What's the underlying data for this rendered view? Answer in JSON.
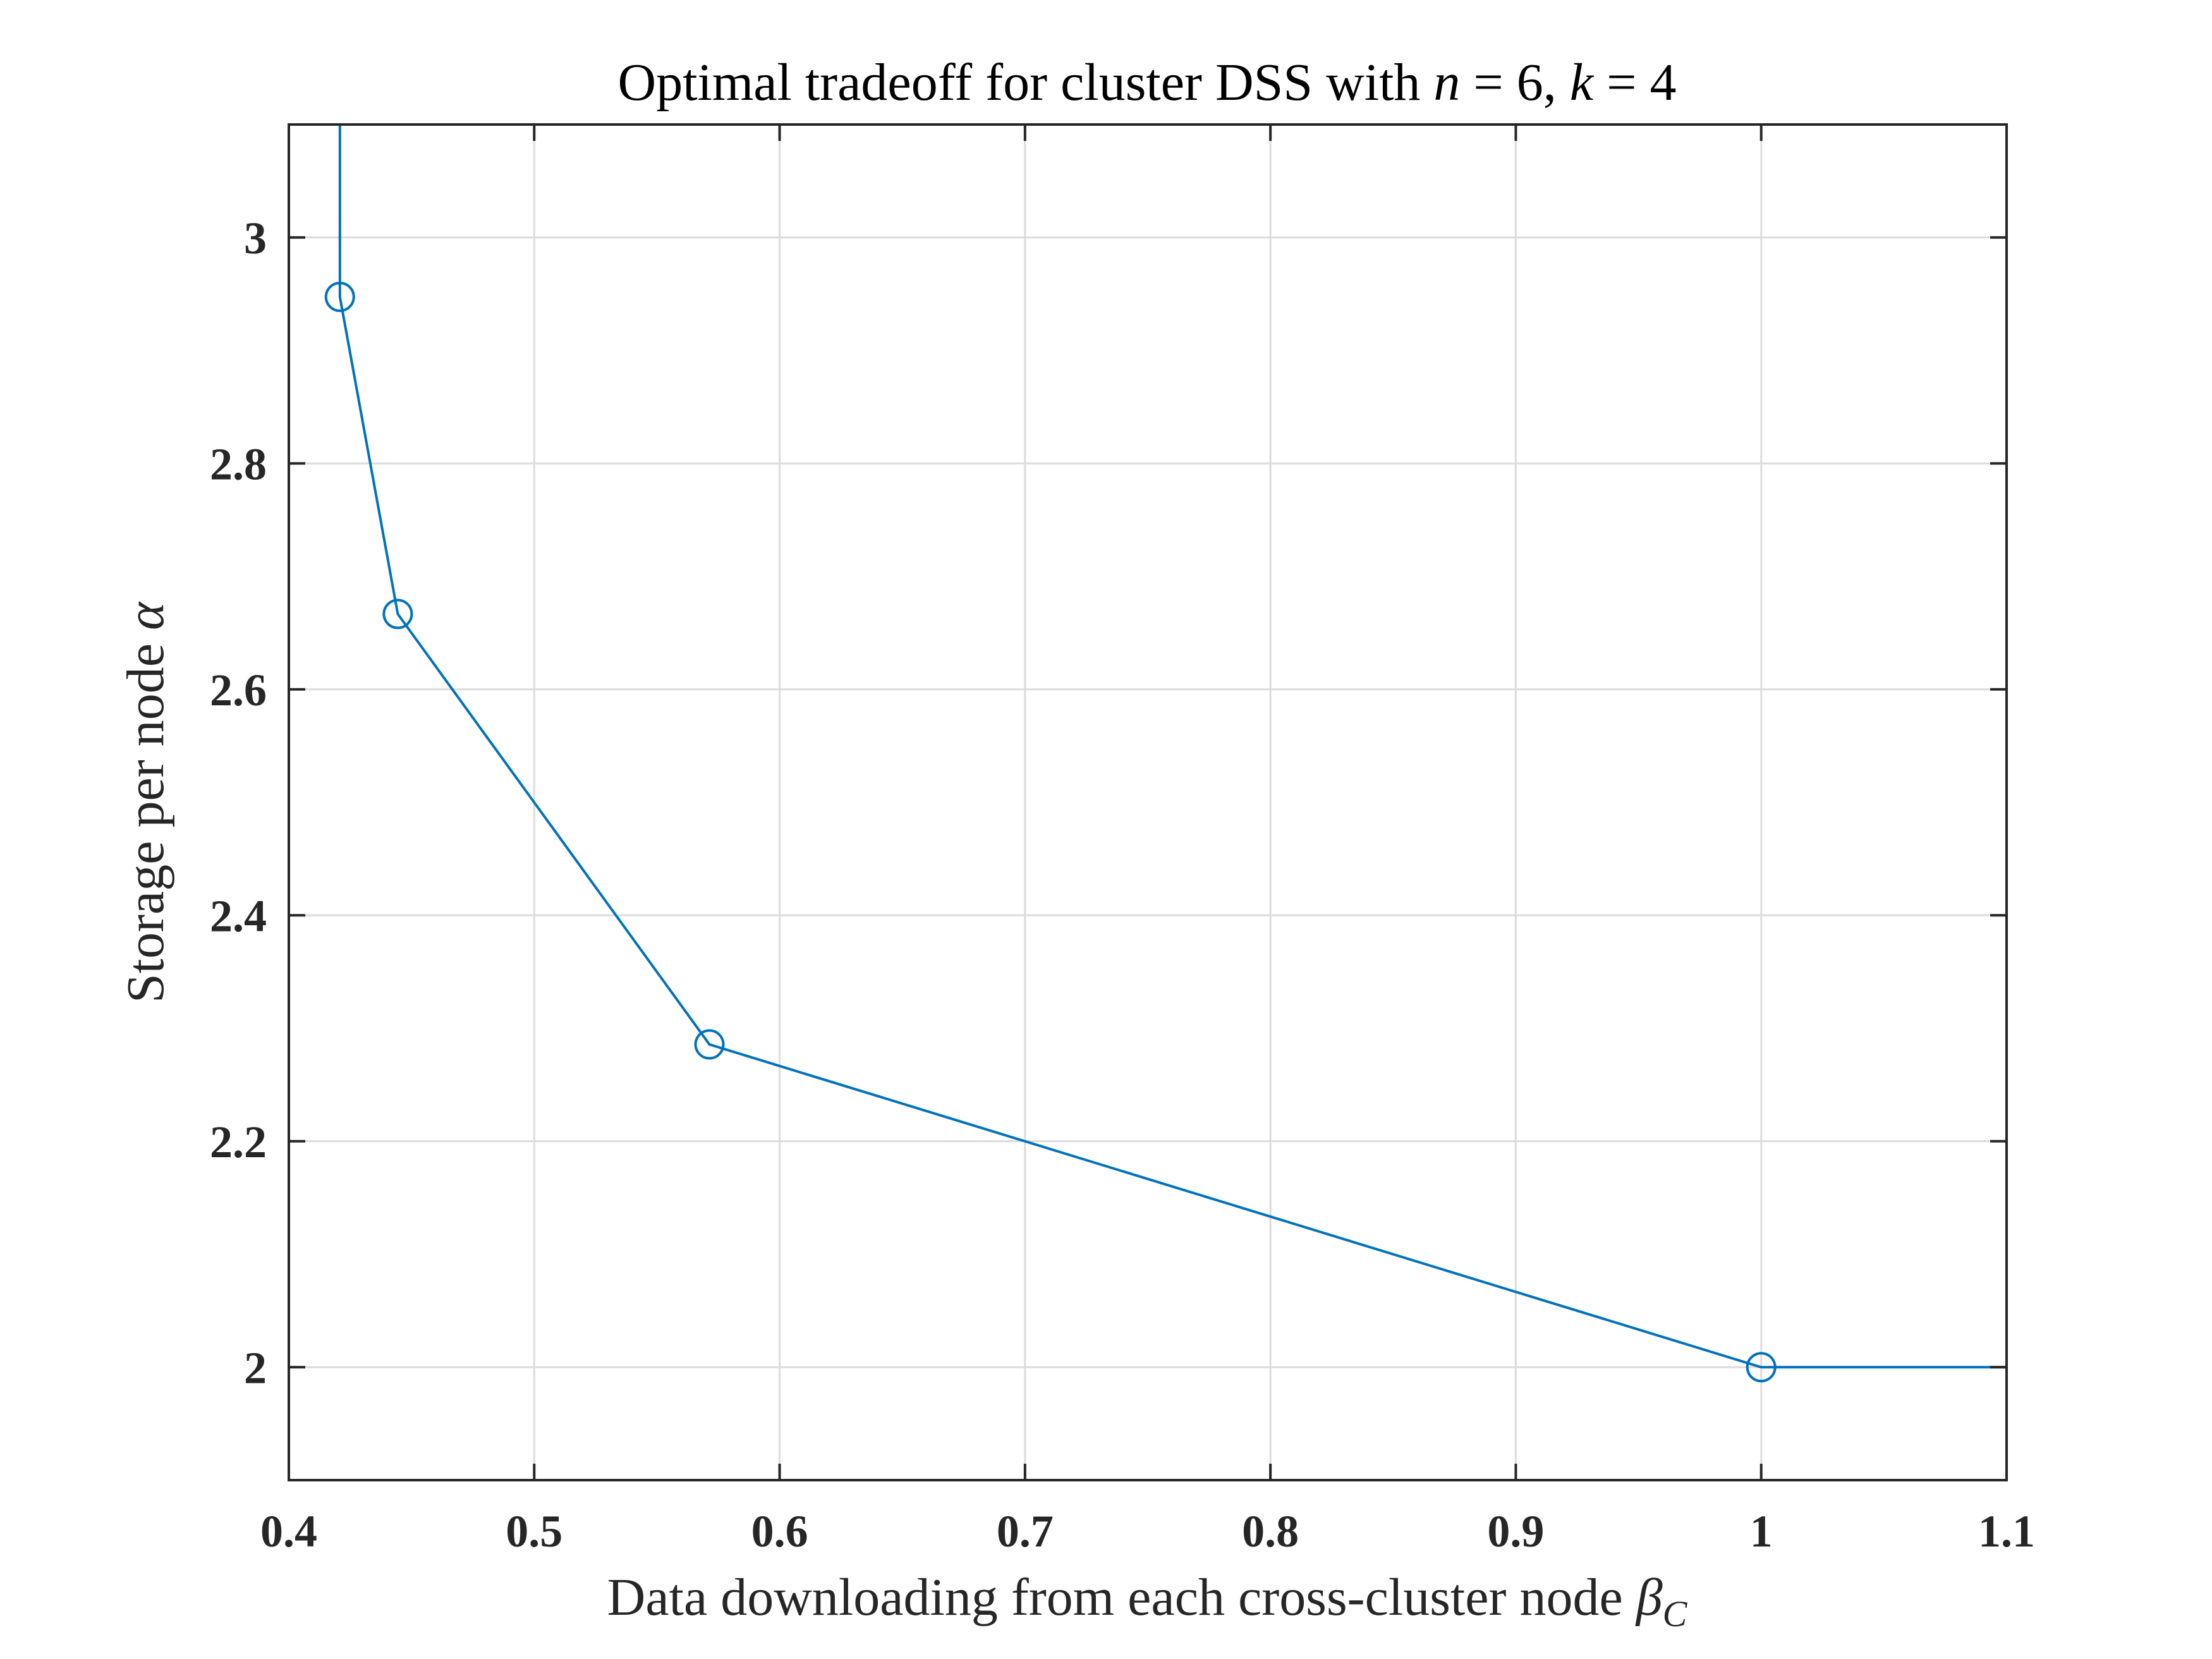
{
  "chart_data": {
    "type": "line",
    "title": {
      "prefix": "Optimal tradeoff for cluster DSS with ",
      "n_symbol": "n",
      "n_eq": " = 6, ",
      "k_symbol": "k",
      "k_eq": " = 4"
    },
    "xlabel": {
      "text": "Data downloading from each cross-cluster node ",
      "symbol": "β",
      "subscript": "C"
    },
    "ylabel": {
      "text": "Storage per node ",
      "symbol": "α"
    },
    "xlim": [
      0.4,
      1.1
    ],
    "ylim": [
      1.9,
      3.1
    ],
    "grid": true,
    "xticks": [
      0.4,
      0.5,
      0.6,
      0.7,
      0.8,
      0.9,
      1.0,
      1.1
    ],
    "xtick_labels": [
      "0.4",
      "0.5",
      "0.6",
      "0.7",
      "0.8",
      "0.9",
      "1",
      "1.1"
    ],
    "yticks": [
      2.0,
      2.2,
      2.4,
      2.6,
      2.8,
      3.0
    ],
    "ytick_labels": [
      "2",
      "2.2",
      "2.4",
      "2.6",
      "2.8",
      "3"
    ],
    "series": [
      {
        "name": "tradeoff",
        "color": "#0072bd",
        "x": [
          0.4208,
          0.4208,
          0.4444,
          0.5714,
          1.0,
          1.1
        ],
        "y": [
          3.1,
          2.9474,
          2.6667,
          2.2857,
          2.0,
          2.0
        ],
        "markers": [
          {
            "x": 0.4208,
            "y": 2.9474
          },
          {
            "x": 0.4444,
            "y": 2.6667
          },
          {
            "x": 0.5714,
            "y": 2.2857
          },
          {
            "x": 1.0,
            "y": 2.0
          }
        ]
      }
    ]
  }
}
